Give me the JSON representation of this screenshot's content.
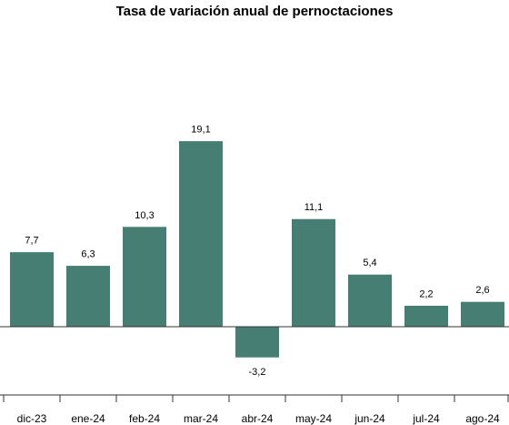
{
  "chart_data": {
    "type": "bar",
    "title": "Tasa de variación anual de pernoctaciones",
    "categories": [
      "dic-23",
      "ene-24",
      "feb-24",
      "mar-24",
      "abr-24",
      "may-24",
      "jun-24",
      "jul-24",
      "ago-24"
    ],
    "values": [
      7.7,
      6.3,
      10.3,
      19.1,
      -3.2,
      11.1,
      5.4,
      2.2,
      2.6
    ],
    "value_labels": [
      "7,7",
      "6,3",
      "10,3",
      "19,1",
      "-3,2",
      "11,1",
      "5,4",
      "2,2",
      "2,6"
    ],
    "xlabel": "",
    "ylabel": "",
    "ylim": [
      -3.2,
      19.1
    ],
    "grid": false,
    "legend": "none",
    "colors": {
      "bar": "#467e74",
      "bar_stroke": "#ffffff",
      "axis": "#333333"
    }
  }
}
